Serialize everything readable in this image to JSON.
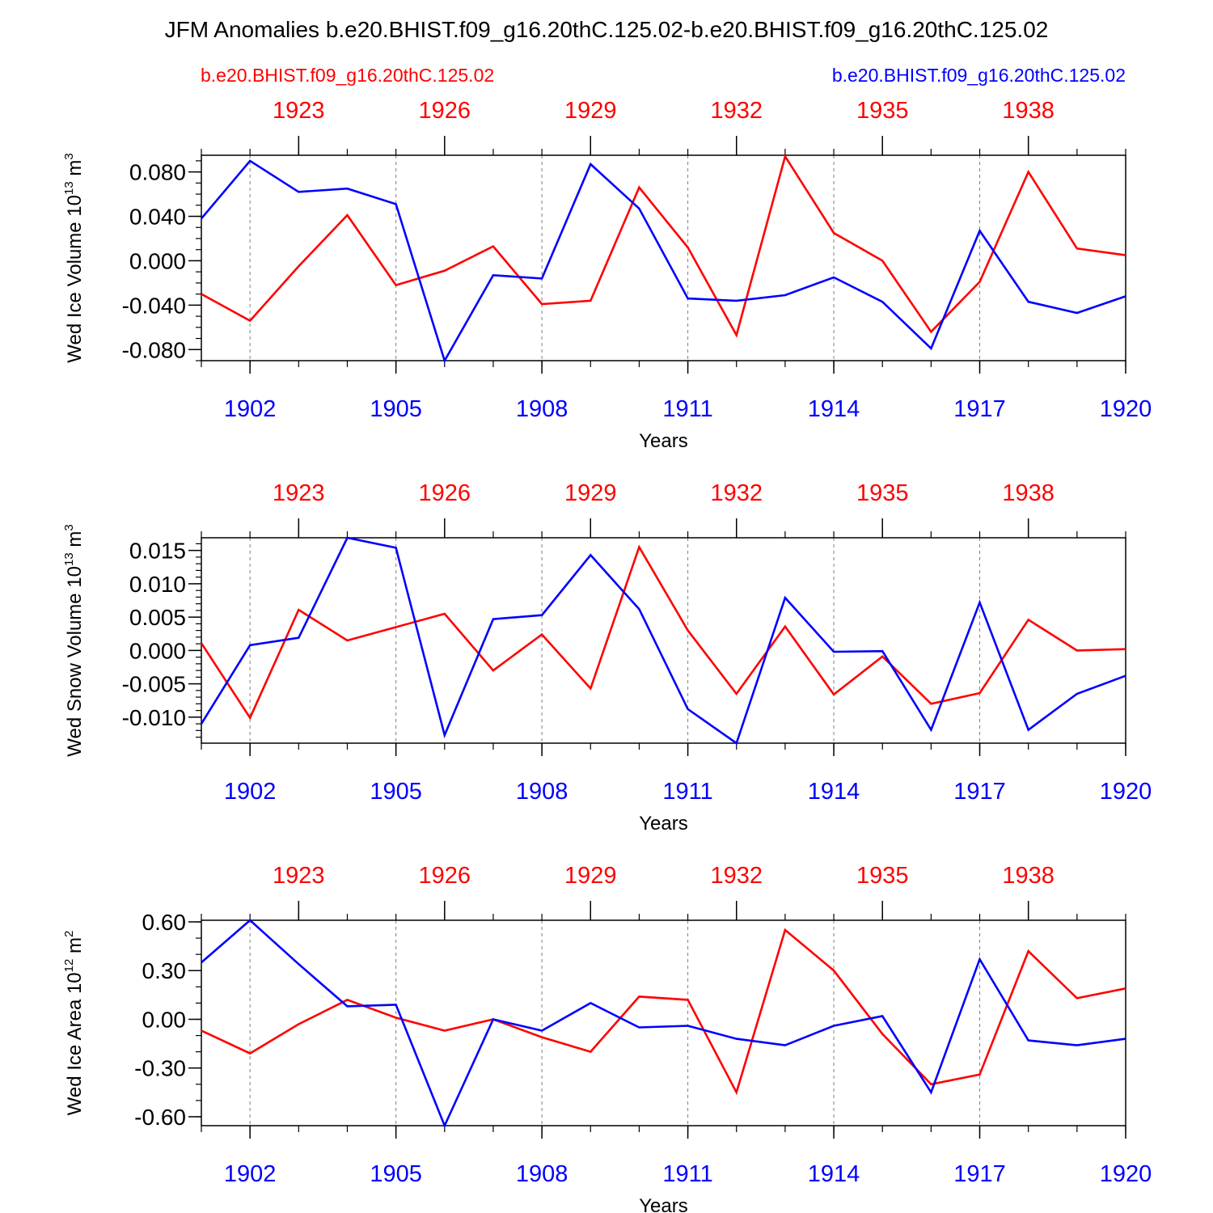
{
  "title": "JFM Anomalies b.e20.BHIST.f09_g16.20thC.125.02-b.e20.BHIST.f09_g16.20thC.125.02",
  "legend": {
    "left": "b.e20.BHIST.f09_g16.20thC.125.02",
    "right": "b.e20.BHIST.f09_g16.20thC.125.02"
  },
  "colors": {
    "red_series": "#ff0000",
    "blue_series": "#0000ff",
    "axis": "#000000",
    "grid": "#808080"
  },
  "chart_data": [
    {
      "type": "line",
      "ylabel": "Wed Ice Volume",
      "yunit_base": "10",
      "yunit_exp": "13",
      "yunit_suffix": "m",
      "yunit_suffix_exp": "3",
      "xlabel": "Years",
      "ylim": [
        -0.09,
        0.095
      ],
      "yticks": [
        -0.08,
        -0.04,
        0.0,
        0.04,
        0.08
      ],
      "ytick_labels": [
        "-0.080",
        "-0.040",
        "0.000",
        "0.040",
        "0.080"
      ],
      "yminor_step": 0.01,
      "x_bottom": [
        1901,
        1902,
        1903,
        1904,
        1905,
        1906,
        1907,
        1908,
        1909,
        1910,
        1911,
        1912,
        1913,
        1914,
        1915,
        1916,
        1917,
        1918,
        1919,
        1920
      ],
      "bottom_ticks": [
        1902,
        1905,
        1908,
        1911,
        1914,
        1917,
        1920
      ],
      "bottom_tick_labels": [
        "1902",
        "1905",
        "1908",
        "1911",
        "1914",
        "1917",
        "1920"
      ],
      "top_ticks_labels": [
        "1923",
        "1926",
        "1929",
        "1932",
        "1935",
        "1938"
      ],
      "top_ticks_pos": [
        1903,
        1906,
        1909,
        1912,
        1915,
        1918
      ],
      "series": [
        {
          "name": "b.e20.BHIST.f09_g16.20thC.125.02",
          "axis": "top",
          "color": "red",
          "values": [
            -0.03,
            -0.054,
            -0.005,
            0.041,
            -0.022,
            -0.009,
            0.013,
            -0.039,
            -0.036,
            0.066,
            0.012,
            -0.067,
            0.094,
            0.025,
            0.0,
            -0.064,
            -0.019,
            0.08,
            0.011,
            0.005
          ]
        },
        {
          "name": "b.e20.BHIST.f09_g16.20thC.125.02",
          "axis": "bottom",
          "color": "blue",
          "values": [
            0.038,
            0.09,
            0.062,
            0.065,
            0.051,
            -0.09,
            -0.013,
            -0.016,
            0.087,
            0.047,
            -0.034,
            -0.036,
            -0.031,
            -0.015,
            -0.037,
            -0.079,
            0.027,
            -0.037,
            -0.047,
            -0.032
          ]
        }
      ]
    },
    {
      "type": "line",
      "ylabel": "Wed Snow Volume",
      "yunit_base": "10",
      "yunit_exp": "13",
      "yunit_suffix": "m",
      "yunit_suffix_exp": "3",
      "xlabel": "Years",
      "ylim": [
        -0.0139,
        0.0169
      ],
      "yticks": [
        -0.01,
        -0.005,
        0.0,
        0.005,
        0.01,
        0.015
      ],
      "ytick_labels": [
        "-0.010",
        "-0.005",
        "0.000",
        "0.005",
        "0.010",
        "0.015"
      ],
      "yminor_step": 0.001,
      "x_bottom": [
        1901,
        1902,
        1903,
        1904,
        1905,
        1906,
        1907,
        1908,
        1909,
        1910,
        1911,
        1912,
        1913,
        1914,
        1915,
        1916,
        1917,
        1918,
        1919,
        1920
      ],
      "bottom_ticks": [
        1902,
        1905,
        1908,
        1911,
        1914,
        1917,
        1920
      ],
      "bottom_tick_labels": [
        "1902",
        "1905",
        "1908",
        "1911",
        "1914",
        "1917",
        "1920"
      ],
      "top_ticks_labels": [
        "1923",
        "1926",
        "1929",
        "1932",
        "1935",
        "1938"
      ],
      "top_ticks_pos": [
        1903,
        1906,
        1909,
        1912,
        1915,
        1918
      ],
      "series": [
        {
          "name": "b.e20.BHIST.f09_g16.20thC.125.02",
          "axis": "top",
          "color": "red",
          "values": [
            0.0011,
            -0.0101,
            0.0061,
            0.0015,
            0.0035,
            0.0055,
            -0.003,
            0.0024,
            -0.0057,
            0.0155,
            0.003,
            -0.0065,
            0.0036,
            -0.0066,
            -0.0009,
            -0.008,
            -0.0064,
            0.0046,
            0.0,
            0.0002
          ]
        },
        {
          "name": "b.e20.BHIST.f09_g16.20thC.125.02",
          "axis": "bottom",
          "color": "blue",
          "values": [
            -0.011,
            0.0008,
            0.0019,
            0.0169,
            0.0154,
            -0.0127,
            0.0047,
            0.0053,
            0.0143,
            0.0062,
            -0.0088,
            -0.0139,
            0.0079,
            -0.0002,
            -0.0001,
            -0.0119,
            0.0072,
            -0.0119,
            -0.0065,
            -0.0038
          ]
        }
      ]
    },
    {
      "type": "line",
      "ylabel": "Wed Ice Area",
      "yunit_base": "10",
      "yunit_exp": "12",
      "yunit_suffix": "m",
      "yunit_suffix_exp": "2",
      "xlabel": "Years",
      "ylim": [
        -0.655,
        0.61
      ],
      "yticks": [
        -0.6,
        -0.3,
        0.0,
        0.3,
        0.6
      ],
      "ytick_labels": [
        "-0.60",
        "-0.30",
        "0.00",
        "0.30",
        "0.60"
      ],
      "yminor_step": 0.1,
      "x_bottom": [
        1901,
        1902,
        1903,
        1904,
        1905,
        1906,
        1907,
        1908,
        1909,
        1910,
        1911,
        1912,
        1913,
        1914,
        1915,
        1916,
        1917,
        1918,
        1919,
        1920
      ],
      "bottom_ticks": [
        1902,
        1905,
        1908,
        1911,
        1914,
        1917,
        1920
      ],
      "bottom_tick_labels": [
        "1902",
        "1905",
        "1908",
        "1911",
        "1914",
        "1917",
        "1920"
      ],
      "top_ticks_labels": [
        "1923",
        "1926",
        "1929",
        "1932",
        "1935",
        "1938"
      ],
      "top_ticks_pos": [
        1903,
        1906,
        1909,
        1912,
        1915,
        1918
      ],
      "series": [
        {
          "name": "b.e20.BHIST.f09_g16.20thC.125.02",
          "axis": "top",
          "color": "red",
          "values": [
            -0.07,
            -0.21,
            -0.03,
            0.12,
            0.01,
            -0.07,
            0.0,
            -0.11,
            -0.2,
            0.14,
            0.12,
            -0.45,
            0.55,
            0.3,
            -0.09,
            -0.4,
            -0.34,
            0.42,
            0.13,
            0.19
          ]
        },
        {
          "name": "b.e20.BHIST.f09_g16.20thC.125.02",
          "axis": "bottom",
          "color": "blue",
          "values": [
            0.35,
            0.61,
            0.34,
            0.08,
            0.09,
            -0.655,
            0.0,
            -0.07,
            0.1,
            -0.05,
            -0.04,
            -0.12,
            -0.16,
            -0.04,
            0.02,
            -0.45,
            0.37,
            -0.13,
            -0.16,
            -0.12
          ]
        }
      ]
    }
  ]
}
